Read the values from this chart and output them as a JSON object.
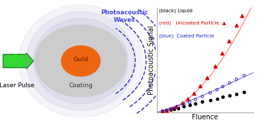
{
  "fig_width": 3.78,
  "fig_height": 1.79,
  "dpi": 100,
  "background_color": "#ffffff",
  "laser_pulse_text": "Laser Pulse",
  "arrow_color_face": "#44cc44",
  "arrow_color_edge": "#228822",
  "photoacoustic_waves_text": "Photoacoustic\nWaves",
  "photoacoustic_waves_color": "#4444dd",
  "gold_text": "Gold",
  "gold_color": "#ee6611",
  "gold_text_color": "#993300",
  "coating_text": "Coating",
  "coating_color": "#cccccc",
  "glow_color": "#9999cc",
  "wave_color": "#3333cc",
  "xlabel": "Fluence",
  "ylabel": "Photoacoustic Signal",
  "axis_line_color": "#aaaaaa",
  "black_x": [
    0.06,
    0.1,
    0.14,
    0.18,
    0.22,
    0.28,
    0.34,
    0.4,
    0.47,
    0.55,
    0.62,
    0.68,
    0.75,
    0.82,
    0.9
  ],
  "black_y": [
    0.01,
    0.015,
    0.025,
    0.03,
    0.04,
    0.055,
    0.07,
    0.085,
    0.1,
    0.115,
    0.13,
    0.145,
    0.16,
    0.175,
    0.19
  ],
  "red_x": [
    0.06,
    0.1,
    0.15,
    0.2,
    0.26,
    0.32,
    0.38,
    0.45,
    0.52,
    0.6,
    0.67,
    0.74,
    0.82,
    0.88
  ],
  "red_y": [
    0.01,
    0.018,
    0.035,
    0.055,
    0.09,
    0.13,
    0.18,
    0.25,
    0.33,
    0.44,
    0.56,
    0.68,
    0.83,
    0.92
  ],
  "blue_x": [
    0.06,
    0.1,
    0.14,
    0.18,
    0.22,
    0.28,
    0.34,
    0.4,
    0.47,
    0.55,
    0.62,
    0.68,
    0.75,
    0.82,
    0.9
  ],
  "blue_y": [
    0.01,
    0.02,
    0.03,
    0.04,
    0.055,
    0.075,
    0.095,
    0.12,
    0.15,
    0.185,
    0.215,
    0.245,
    0.28,
    0.315,
    0.35
  ],
  "red_fit_exp": 1.85,
  "red_fit_scale": 1.05,
  "blue_fit_exp": 1.15,
  "blue_fit_scale": 0.38
}
